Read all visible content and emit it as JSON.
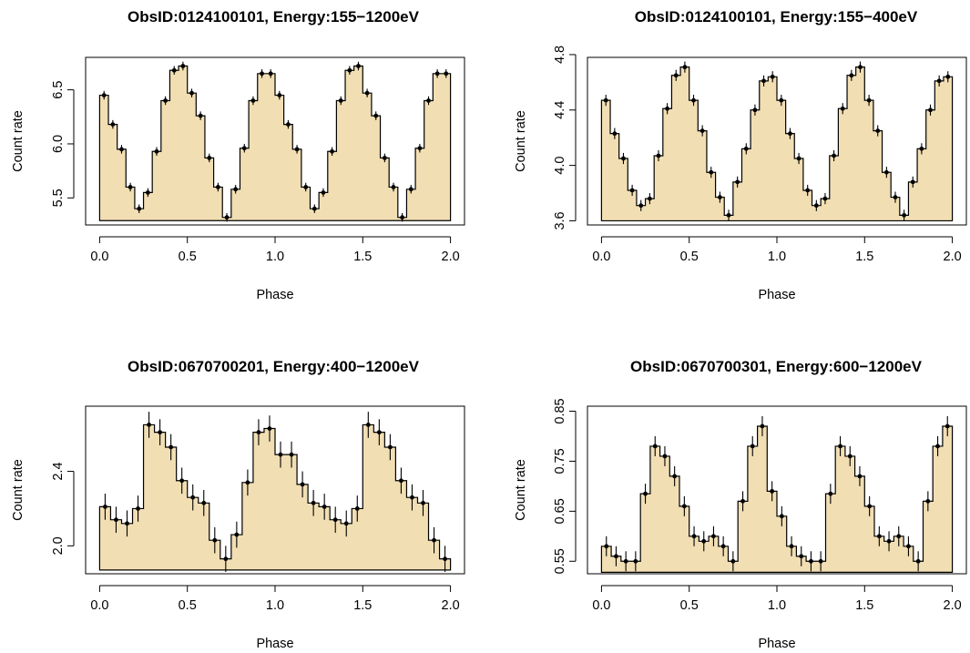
{
  "colors": {
    "fill": "#F1DEB3",
    "line": "#000000"
  },
  "chart_data": [
    {
      "type": "step",
      "title": "ObsID:0124100101, Energy:155−1200eV",
      "xlabel": "Phase",
      "ylabel": "Count rate",
      "xlim": [
        0,
        2
      ],
      "ylim": [
        5.25,
        6.8
      ],
      "yticks": [
        5.5,
        6.0,
        6.5
      ],
      "ytick_labels": [
        "5.5",
        "6.0",
        "6.5"
      ],
      "xticks": [
        0,
        0.5,
        1.0,
        1.5,
        2.0
      ],
      "xtick_labels": [
        "0.0",
        "0.5",
        "1.0",
        "1.5",
        "2.0"
      ],
      "baseline": 5.29,
      "bin_width": 0.05,
      "x": [
        0.025,
        0.075,
        0.125,
        0.175,
        0.225,
        0.275,
        0.325,
        0.375,
        0.425,
        0.475,
        0.525,
        0.575,
        0.625,
        0.675,
        0.725,
        0.775,
        0.825,
        0.875,
        0.925,
        0.975,
        1.025,
        1.075,
        1.125,
        1.175,
        1.225,
        1.275,
        1.325,
        1.375,
        1.425,
        1.475,
        1.525,
        1.575,
        1.625,
        1.675,
        1.725,
        1.775,
        1.825,
        1.875,
        1.925,
        1.975
      ],
      "y": [
        6.45,
        6.18,
        5.95,
        5.6,
        5.4,
        5.55,
        5.93,
        6.4,
        6.68,
        6.72,
        6.47,
        6.26,
        5.87,
        5.6,
        5.32,
        5.58,
        5.96,
        6.4,
        6.65,
        6.65,
        6.45,
        6.18,
        5.95,
        5.6,
        5.4,
        5.55,
        5.93,
        6.4,
        6.68,
        6.72,
        6.47,
        6.26,
        5.87,
        5.6,
        5.32,
        5.58,
        5.96,
        6.4,
        6.65,
        6.65
      ],
      "err": [
        0.04,
        0.04,
        0.04,
        0.04,
        0.04,
        0.04,
        0.04,
        0.04,
        0.04,
        0.04,
        0.04,
        0.04,
        0.04,
        0.04,
        0.04,
        0.04,
        0.04,
        0.04,
        0.04,
        0.04,
        0.04,
        0.04,
        0.04,
        0.04,
        0.04,
        0.04,
        0.04,
        0.04,
        0.04,
        0.04,
        0.04,
        0.04,
        0.04,
        0.04,
        0.04,
        0.04,
        0.04,
        0.04,
        0.04,
        0.04
      ]
    },
    {
      "type": "step",
      "title": "ObsID:0124100101, Energy:155−400eV",
      "xlabel": "Phase",
      "ylabel": "Count rate",
      "xlim": [
        0,
        2
      ],
      "ylim": [
        3.57,
        4.78
      ],
      "yticks": [
        3.6,
        4.0,
        4.4,
        4.8
      ],
      "ytick_labels": [
        "3.6",
        "4.0",
        "4.4",
        "4.8"
      ],
      "xticks": [
        0,
        0.5,
        1.0,
        1.5,
        2.0
      ],
      "xtick_labels": [
        "0.0",
        "0.5",
        "1.0",
        "1.5",
        "2.0"
      ],
      "baseline": 3.6,
      "bin_width": 0.05,
      "x": [
        0.025,
        0.075,
        0.125,
        0.175,
        0.225,
        0.275,
        0.325,
        0.375,
        0.425,
        0.475,
        0.525,
        0.575,
        0.625,
        0.675,
        0.725,
        0.775,
        0.825,
        0.875,
        0.925,
        0.975,
        1.025,
        1.075,
        1.125,
        1.175,
        1.225,
        1.275,
        1.325,
        1.375,
        1.425,
        1.475,
        1.525,
        1.575,
        1.625,
        1.675,
        1.725,
        1.775,
        1.825,
        1.875,
        1.925,
        1.975
      ],
      "y": [
        4.47,
        4.23,
        4.05,
        3.82,
        3.71,
        3.76,
        4.07,
        4.41,
        4.65,
        4.71,
        4.47,
        4.25,
        3.95,
        3.77,
        3.64,
        3.88,
        4.12,
        4.4,
        4.61,
        4.64,
        4.47,
        4.23,
        4.05,
        3.82,
        3.71,
        3.76,
        4.07,
        4.41,
        4.65,
        4.71,
        4.47,
        4.25,
        3.95,
        3.77,
        3.64,
        3.88,
        4.12,
        4.4,
        4.61,
        4.64
      ],
      "err": [
        0.04,
        0.04,
        0.04,
        0.04,
        0.04,
        0.04,
        0.04,
        0.04,
        0.04,
        0.04,
        0.04,
        0.04,
        0.04,
        0.04,
        0.04,
        0.04,
        0.04,
        0.04,
        0.04,
        0.04,
        0.04,
        0.04,
        0.04,
        0.04,
        0.04,
        0.04,
        0.04,
        0.04,
        0.04,
        0.04,
        0.04,
        0.04,
        0.04,
        0.04,
        0.04,
        0.04,
        0.04,
        0.04,
        0.04,
        0.04
      ]
    },
    {
      "type": "step",
      "title": "ObsID:0670700201, Energy:400−1200eV",
      "xlabel": "Phase",
      "ylabel": "Count rate",
      "xlim": [
        0,
        2
      ],
      "ylim": [
        1.85,
        2.75
      ],
      "yticks": [
        2.0,
        2.4
      ],
      "ytick_labels": [
        "2.0",
        "2.4"
      ],
      "xticks": [
        0,
        0.5,
        1.0,
        1.5,
        2.0
      ],
      "xtick_labels": [
        "0.0",
        "0.5",
        "1.0",
        "1.5",
        "2.0"
      ],
      "baseline": 1.87,
      "bin_width": 0.0625,
      "x": [
        0.03125,
        0.09375,
        0.15625,
        0.21875,
        0.28125,
        0.34375,
        0.40625,
        0.46875,
        0.53125,
        0.59375,
        0.65625,
        0.71875,
        0.78125,
        0.84375,
        0.90625,
        0.96875,
        1.03125,
        1.09375,
        1.15625,
        1.21875,
        1.28125,
        1.34375,
        1.40625,
        1.46875,
        1.53125,
        1.59375,
        1.65625,
        1.71875,
        1.78125,
        1.84375,
        1.90625,
        1.96875
      ],
      "y": [
        2.21,
        2.14,
        2.12,
        2.2,
        2.65,
        2.61,
        2.53,
        2.35,
        2.26,
        2.23,
        2.03,
        1.93,
        2.06,
        2.34,
        2.61,
        2.63,
        2.49,
        2.49,
        2.33,
        2.23,
        2.21,
        2.14,
        2.12,
        2.2,
        2.65,
        2.61,
        2.53,
        2.35,
        2.26,
        2.23,
        2.03,
        1.93
      ],
      "err": [
        0.07,
        0.07,
        0.07,
        0.07,
        0.07,
        0.07,
        0.07,
        0.07,
        0.07,
        0.07,
        0.07,
        0.07,
        0.07,
        0.07,
        0.07,
        0.07,
        0.07,
        0.07,
        0.07,
        0.07,
        0.07,
        0.07,
        0.07,
        0.07,
        0.07,
        0.07,
        0.07,
        0.07,
        0.07,
        0.07,
        0.07,
        0.07
      ]
    },
    {
      "type": "step",
      "title": "ObsID:0670700301, Energy:600−1200eV",
      "xlabel": "Phase",
      "ylabel": "Count rate",
      "xlim": [
        0,
        2
      ],
      "ylim": [
        0.525,
        0.86
      ],
      "yticks": [
        0.55,
        0.65,
        0.75,
        0.85
      ],
      "ytick_labels": [
        "0.55",
        "0.65",
        "0.75",
        "0.85"
      ],
      "xticks": [
        0,
        0.5,
        1.0,
        1.5,
        2.0
      ],
      "xtick_labels": [
        "0.0",
        "0.5",
        "1.0",
        "1.5",
        "2.0"
      ],
      "baseline": 0.528,
      "bin_width": 0.0555556,
      "x": [
        0.0277778,
        0.0833333,
        0.138889,
        0.194444,
        0.25,
        0.305556,
        0.361111,
        0.416667,
        0.472222,
        0.527778,
        0.583333,
        0.638889,
        0.694444,
        0.75,
        0.805556,
        0.861111,
        0.916667,
        0.972222,
        1.027778,
        1.083333,
        1.138889,
        1.194444,
        1.25,
        1.305556,
        1.361111,
        1.416667,
        1.472222,
        1.527778,
        1.583333,
        1.638889,
        1.694444,
        1.75,
        1.805556,
        1.861111,
        1.916667,
        1.972222
      ],
      "y": [
        0.58,
        0.56,
        0.55,
        0.55,
        0.685,
        0.78,
        0.76,
        0.72,
        0.66,
        0.6,
        0.59,
        0.6,
        0.58,
        0.55,
        0.67,
        0.78,
        0.82,
        0.69,
        0.64,
        0.58,
        0.56,
        0.55,
        0.55,
        0.685,
        0.78,
        0.76,
        0.72,
        0.66,
        0.6,
        0.59,
        0.6,
        0.58,
        0.55,
        0.67,
        0.78,
        0.82
      ],
      "err": [
        0.02,
        0.02,
        0.02,
        0.02,
        0.02,
        0.02,
        0.02,
        0.02,
        0.02,
        0.02,
        0.02,
        0.02,
        0.02,
        0.02,
        0.02,
        0.02,
        0.02,
        0.02,
        0.02,
        0.02,
        0.02,
        0.02,
        0.02,
        0.02,
        0.02,
        0.02,
        0.02,
        0.02,
        0.02,
        0.02,
        0.02,
        0.02,
        0.02,
        0.02,
        0.02,
        0.02
      ]
    }
  ]
}
